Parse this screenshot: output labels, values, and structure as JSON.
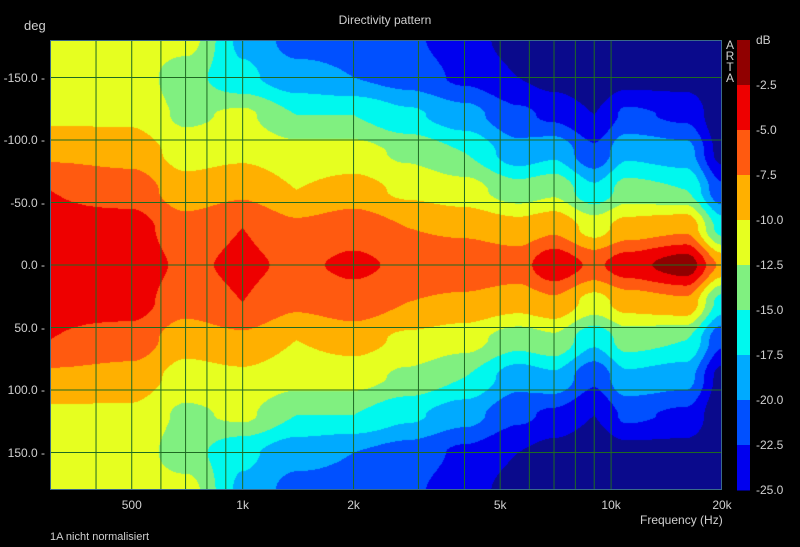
{
  "chart_data": {
    "type": "heatmap",
    "title": "Directivity pattern",
    "xlabel": "Frequency (Hz)",
    "ylabel": "deg",
    "xscale": "log",
    "xlim": [
      300,
      20000
    ],
    "ylim": [
      -180,
      180
    ],
    "x_ticks": [
      {
        "v": 500,
        "label": "500"
      },
      {
        "v": 1000,
        "label": "1k"
      },
      {
        "v": 2000,
        "label": "2k"
      },
      {
        "v": 5000,
        "label": "5k"
      },
      {
        "v": 10000,
        "label": "10k"
      },
      {
        "v": 20000,
        "label": "20k"
      }
    ],
    "y_ticks": [
      {
        "v": -150,
        "label": "-150.0"
      },
      {
        "v": -100,
        "label": "-100.0"
      },
      {
        "v": -50,
        "label": "-50.0"
      },
      {
        "v": 0,
        "label": "0.0"
      },
      {
        "v": 50,
        "label": "50.0"
      },
      {
        "v": 100,
        "label": "100.0"
      },
      {
        "v": 150,
        "label": "150.0"
      }
    ],
    "grid": true,
    "x_grid": [
      400,
      500,
      600,
      700,
      800,
      900,
      1000,
      2000,
      3000,
      4000,
      5000,
      6000,
      7000,
      8000,
      9000,
      10000
    ],
    "colorbar": {
      "unit": "dB",
      "levels": [
        0,
        -2.5,
        -5,
        -7.5,
        -10,
        -12.5,
        -15,
        -17.5,
        -20,
        -22.5,
        -25
      ],
      "labels": [
        "-2.5",
        "-5.0",
        "-7.5",
        "-10.0",
        "-12.5",
        "-15.0",
        "-17.5",
        "-20.0",
        "-22.5",
        "-25.0"
      ],
      "colors": [
        "#900000",
        "#ee0000",
        "#ff5a10",
        "#ffb000",
        "#e6ff20",
        "#80f080",
        "#00f8ee",
        "#00aaff",
        "#0050ff",
        "#0000ee"
      ],
      "below_color": "#0a0a8c"
    },
    "frequencies": [
      300,
      500,
      700,
      1000,
      1400,
      2000,
      2800,
      4000,
      5600,
      7000,
      9000,
      11000,
      16000,
      20000
    ],
    "angles_abs": [
      0,
      30,
      60,
      90,
      120,
      150,
      180
    ],
    "symmetric": true,
    "values_db": [
      [
        -4,
        -4.5,
        -5,
        -8,
        -10.5,
        -11,
        -11
      ],
      [
        -3.5,
        -4,
        -6,
        -8.5,
        -10.5,
        -11,
        -11
      ],
      [
        -5.5,
        -6.5,
        -9,
        -11,
        -13,
        -14,
        -11.5
      ],
      [
        -4.5,
        -5,
        -8,
        -10.5,
        -12,
        -17,
        -18
      ],
      [
        -5.5,
        -7,
        -10,
        -11.5,
        -15,
        -19,
        -21
      ],
      [
        -4.5,
        -6,
        -9,
        -11.5,
        -15,
        -20,
        -21
      ],
      [
        -5.5,
        -7.5,
        -10.5,
        -13,
        -17,
        -21,
        -22
      ],
      [
        -5.5,
        -8,
        -11.5,
        -15,
        -19,
        -23,
        -24
      ],
      [
        -6,
        -9,
        -14,
        -19,
        -22,
        -25,
        -26
      ],
      [
        -3,
        -8,
        -13,
        -18,
        -23,
        -26,
        -27
      ],
      [
        -5.5,
        -11,
        -17,
        -22,
        -25,
        -27,
        -27
      ],
      [
        -3.5,
        -9,
        -14,
        -18,
        -22,
        -26,
        -27
      ],
      [
        -1,
        -8,
        -15,
        -19,
        -23,
        -26,
        -27
      ],
      [
        -8,
        -16,
        -22,
        -26,
        -27,
        -27,
        -27
      ]
    ]
  },
  "watermark": "ARTA",
  "footer_note": "1A nicht normalisiert"
}
